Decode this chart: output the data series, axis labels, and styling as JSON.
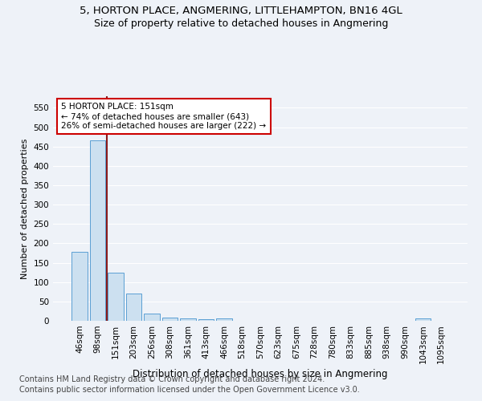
{
  "title1": "5, HORTON PLACE, ANGMERING, LITTLEHAMPTON, BN16 4GL",
  "title2": "Size of property relative to detached houses in Angmering",
  "xlabel": "Distribution of detached houses by size in Angmering",
  "ylabel": "Number of detached properties",
  "footnote1": "Contains HM Land Registry data © Crown copyright and database right 2024.",
  "footnote2": "Contains public sector information licensed under the Open Government Licence v3.0.",
  "categories": [
    "46sqm",
    "98sqm",
    "151sqm",
    "203sqm",
    "256sqm",
    "308sqm",
    "361sqm",
    "413sqm",
    "466sqm",
    "518sqm",
    "570sqm",
    "623sqm",
    "675sqm",
    "728sqm",
    "780sqm",
    "833sqm",
    "885sqm",
    "938sqm",
    "990sqm",
    "1043sqm",
    "1095sqm"
  ],
  "values": [
    178,
    467,
    125,
    70,
    18,
    9,
    6,
    5,
    6,
    0,
    0,
    0,
    0,
    0,
    0,
    0,
    0,
    0,
    0,
    6,
    0
  ],
  "bar_color": "#cce0f0",
  "bar_edge_color": "#5a9fd4",
  "vline_x_index": 1.5,
  "vline_color": "#8b1a1a",
  "annotation_text": "5 HORTON PLACE: 151sqm\n← 74% of detached houses are smaller (643)\n26% of semi-detached houses are larger (222) →",
  "annotation_box_color": "#ffffff",
  "annotation_box_edge_color": "#cc0000",
  "ylim": [
    0,
    580
  ],
  "yticks": [
    0,
    50,
    100,
    150,
    200,
    250,
    300,
    350,
    400,
    450,
    500,
    550
  ],
  "bg_color": "#eef2f8",
  "grid_color": "#ffffff",
  "title1_fontsize": 9.5,
  "title2_fontsize": 9,
  "xlabel_fontsize": 8.5,
  "ylabel_fontsize": 8,
  "tick_fontsize": 7.5,
  "annotation_fontsize": 7.5,
  "footnote_fontsize": 7
}
